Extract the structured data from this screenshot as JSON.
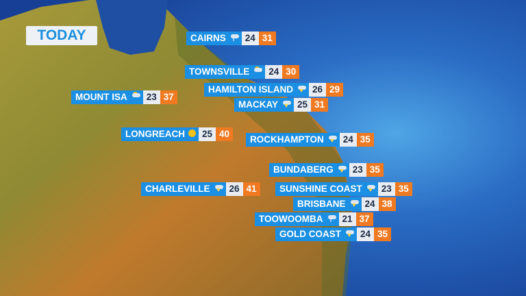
{
  "title": "TODAY",
  "colors": {
    "label_bg": "#1a8fe3",
    "min_bg": "#e9edf2",
    "max_bg": "#f07a22",
    "ocean": "#1d4fa6"
  },
  "cities": [
    {
      "name": "CAIRNS",
      "icon": "showers-icon",
      "min": "24",
      "max": "31"
    },
    {
      "name": "TOWNSVILLE",
      "icon": "partly-cloudy-icon",
      "min": "24",
      "max": "30"
    },
    {
      "name": "HAMILTON ISLAND",
      "icon": "storm-icon",
      "min": "26",
      "max": "29"
    },
    {
      "name": "MACKAY",
      "icon": "storm-icon",
      "min": "25",
      "max": "31"
    },
    {
      "name": "MOUNT ISA",
      "icon": "partly-cloudy-icon",
      "min": "23",
      "max": "37"
    },
    {
      "name": "LONGREACH",
      "icon": "sunny-icon",
      "min": "25",
      "max": "40"
    },
    {
      "name": "ROCKHAMPTON",
      "icon": "storm-icon",
      "min": "24",
      "max": "35"
    },
    {
      "name": "BUNDABERG",
      "icon": "storm-icon",
      "min": "23",
      "max": "35"
    },
    {
      "name": "CHARLEVILLE",
      "icon": "storm-icon",
      "min": "26",
      "max": "41"
    },
    {
      "name": "SUNSHINE COAST",
      "icon": "storm-icon",
      "min": "23",
      "max": "35"
    },
    {
      "name": "BRISBANE",
      "icon": "storm-icon",
      "min": "24",
      "max": "38"
    },
    {
      "name": "TOOWOOMBA",
      "icon": "showers-icon",
      "min": "21",
      "max": "37"
    },
    {
      "name": "GOLD COAST",
      "icon": "storm-icon",
      "min": "24",
      "max": "35"
    }
  ]
}
